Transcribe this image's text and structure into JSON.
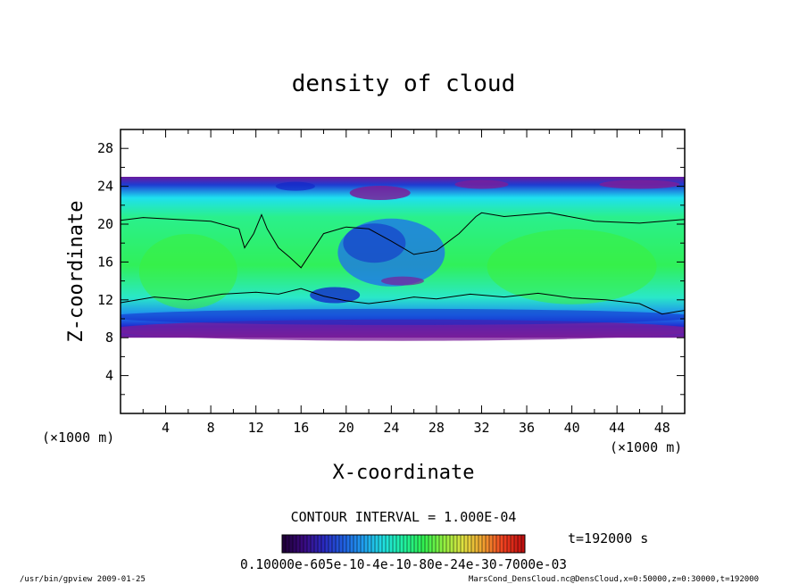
{
  "chart_data": {
    "type": "heatmap",
    "title": "density of cloud",
    "xlabel": "X-coordinate",
    "ylabel": "Z-coordinate",
    "x_unit": "(×1000 m)",
    "z_unit": "(×1000 m)",
    "xlim": [
      0,
      50
    ],
    "ylim": [
      0,
      30
    ],
    "x_ticks": [
      "4",
      "8",
      "12",
      "16",
      "20",
      "24",
      "28",
      "32",
      "36",
      "40",
      "44",
      "48"
    ],
    "x_tick_values": [
      4,
      8,
      12,
      16,
      20,
      24,
      28,
      32,
      36,
      40,
      44,
      48
    ],
    "y_ticks": [
      "4",
      "8",
      "12",
      "16",
      "20",
      "24",
      "28"
    ],
    "y_tick_values": [
      4,
      8,
      12,
      16,
      20,
      24,
      28
    ],
    "cloud_layer": {
      "bottom_km": 8,
      "top_km": 25
    },
    "contour_interval": "CONTOUR INTERVAL = 1.000E-04",
    "time_label": "t=192000 s",
    "colorbar_labels": "0.10000e-605e-10-4e-10-80e-24e-30-7000e-03",
    "colorbar_colors": [
      "#20003a",
      "#3a0a80",
      "#2a2ac0",
      "#2060e0",
      "#20a0f0",
      "#20e0e0",
      "#20f0a0",
      "#30f050",
      "#90f040",
      "#e0e040",
      "#f0a030",
      "#f04020",
      "#c01010"
    ],
    "field_colors": {
      "purple": "#7a1e9a",
      "darkblue": "#1428c8",
      "blue": "#1e6ef0",
      "cyan": "#1ee6f0",
      "green": "#28f07a",
      "brightgreen": "#3cf03c"
    }
  },
  "footer": {
    "left": "/usr/bin/gpview  2009-01-25",
    "right": "MarsCond_DensCloud.nc@DensCloud,x=0:50000,z=0:30000,t=192000"
  }
}
